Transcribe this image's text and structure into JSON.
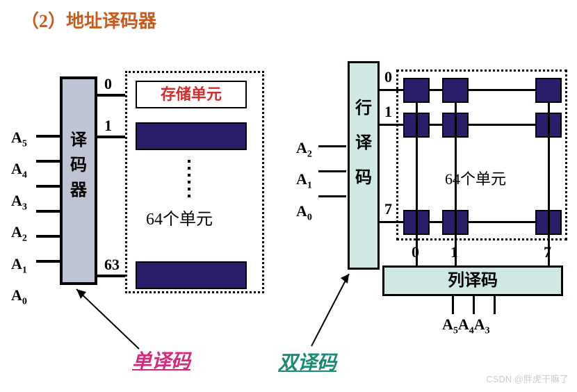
{
  "title": "（2）地址译码器",
  "colors": {
    "title": "#c75b1e",
    "cell_fill": "#2a1e6b",
    "left_decoder_bg": "#bfc4d4",
    "right_decoder_bg": "#cfe8e3",
    "single_label": "#d52b7a",
    "double_label": "#1a8a78",
    "storage_text": "#d52b2b"
  },
  "left": {
    "inputs": [
      "A",
      "A",
      "A",
      "A",
      "A",
      "A"
    ],
    "input_subs": [
      "5",
      "4",
      "3",
      "2",
      "1",
      "0"
    ],
    "decoder": "译码器",
    "outputs": [
      "0",
      "1",
      "63"
    ],
    "storage_unit": "存储单元",
    "caption": "64个单元",
    "label": "单译码"
  },
  "right": {
    "row_inputs": [
      "A",
      "A",
      "A"
    ],
    "row_input_subs": [
      "2",
      "1",
      "0"
    ],
    "row_decoder": "行译码",
    "row_outputs": [
      "0",
      "1",
      "7"
    ],
    "col_outputs": [
      "0",
      "1",
      "7"
    ],
    "caption": "64个单元",
    "col_decoder": "列译码",
    "col_inputs": [
      "A",
      "A",
      "A"
    ],
    "col_input_subs": [
      "5",
      "4",
      "3"
    ],
    "label": "双译码"
  },
  "watermark": "CSDN @胖虎干嘛了"
}
